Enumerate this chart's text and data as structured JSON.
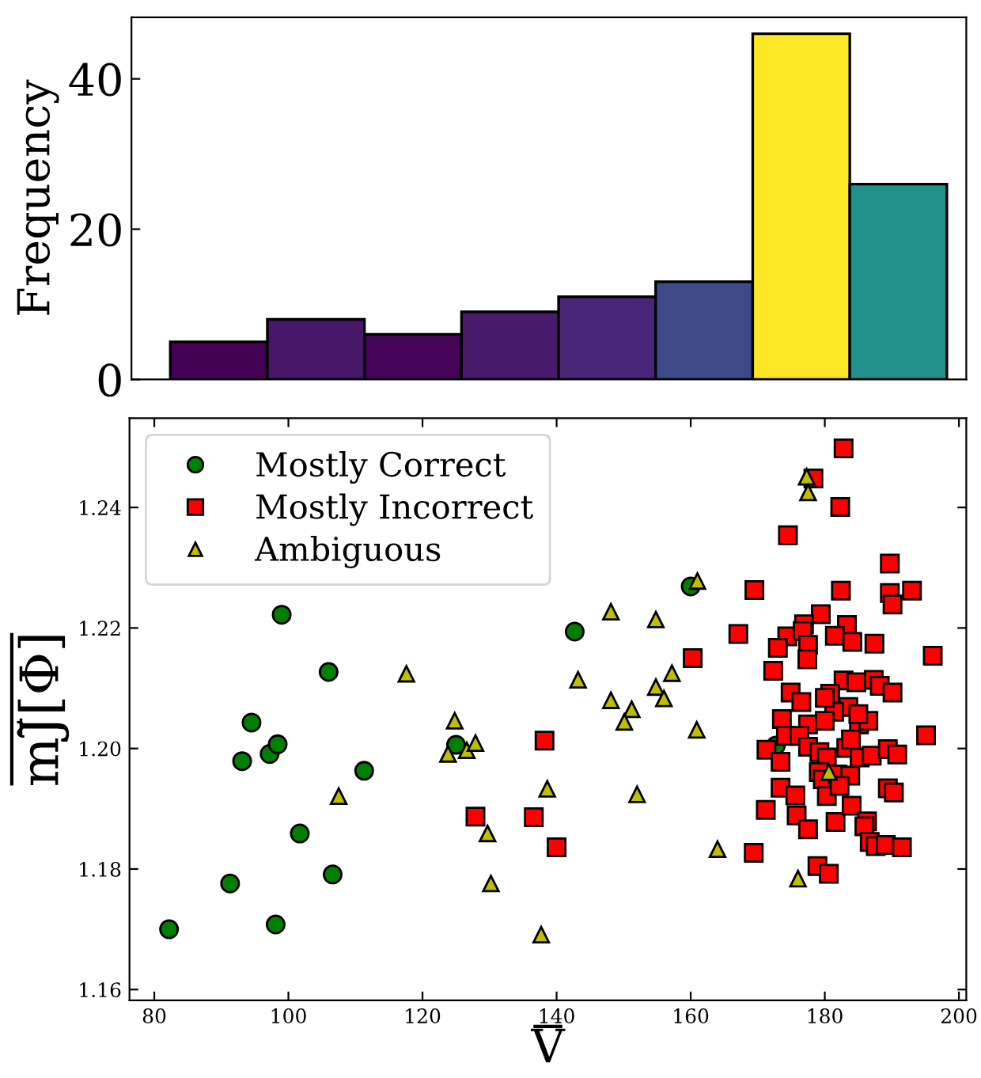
{
  "chart_data": [
    {
      "type": "bar",
      "ylabel": "Frequency",
      "categories": [
        null,
        null,
        null,
        null,
        null,
        null,
        null,
        null
      ],
      "values": [
        5,
        8,
        6,
        9,
        11,
        13,
        46,
        26
      ],
      "colors": [
        "#440154",
        "#481769",
        "#450457",
        "#481a6c",
        "#482677",
        "#3e4989",
        "#fde725",
        "#21918c"
      ],
      "ylim": [
        0,
        48.2
      ],
      "yticks": [
        0,
        20,
        40
      ],
      "grid": false
    },
    {
      "type": "scatter",
      "xlabel": "V",
      "ylabel": "mJ̃[Φ]",
      "legend": "top left",
      "grid": false,
      "xlim": [
        76.3,
        201.1
      ],
      "xticks": [
        80,
        100,
        120,
        140,
        160,
        180,
        200
      ],
      "ylim": [
        1.1582,
        1.2548
      ],
      "yticks": [
        1.16,
        1.18,
        {
          "value": 1.2,
          "label": "1.20"
        },
        1.22,
        1.24
      ],
      "series": [
        {
          "name": "Mostly Correct",
          "color": "#008000",
          "marker": "circle",
          "x": [
            82.2,
            94.5,
            93.1,
            97.2,
            98.4,
            91.3,
            98.1,
            101.7,
            106.6,
            111.3,
            125.0,
            99.0,
            106.0,
            142.7,
            160.0,
            172.7
          ],
          "values": [
            1.17,
            1.2043,
            1.1979,
            1.1991,
            1.2007,
            1.1776,
            1.1708,
            1.1859,
            1.1791,
            1.1963,
            1.2006,
            1.2222,
            1.2127,
            1.2194,
            1.2269,
            1.2005
          ]
        },
        {
          "name": "Mostly Incorrect",
          "color": "#ff0000",
          "marker": "square",
          "x": [
            127.9,
            136.6,
            138.2,
            140.0,
            182.8,
            178.3,
            182.3,
            174.5,
            189.7,
            169.5,
            182.4,
            189.7,
            193.0,
            190.1,
            179.4,
            176.9,
            183.3,
            167.1,
            174.4,
            176.7,
            181.5,
            184.1,
            187.4,
            196.1,
            173.0,
            177.5,
            160.3,
            172.3,
            177.4,
            174.9,
            176.5,
            182.8,
            184.7,
            187.3,
            188.2,
            190.1,
            180.8,
            183.5,
            181.4,
            180.0,
            173.6,
            177.5,
            180.0,
            185.1,
            186.5,
            185.0,
            195.1,
            174.2,
            176.2,
            171.3,
            173.4,
            177.5,
            179.2,
            180.3,
            183.2,
            183.9,
            185.2,
            187.0,
            189.4,
            190.8,
            179.1,
            179.7,
            181.9,
            183.8,
            173.4,
            175.6,
            180.3,
            182.2,
            189.4,
            190.3,
            171.2,
            175.8,
            177.5,
            181.6,
            184.0,
            186.3,
            185.9,
            186.7,
            187.6,
            189.1,
            191.5,
            169.4,
            178.9,
            180.6
          ],
          "values": [
            1.1887,
            1.1886,
            1.2013,
            1.1836,
            1.2498,
            1.2448,
            1.2401,
            1.2354,
            1.2307,
            1.2263,
            1.2262,
            1.2258,
            1.2262,
            1.2239,
            1.2223,
            1.2206,
            1.2205,
            1.219,
            1.2186,
            1.2195,
            1.2187,
            1.2177,
            1.2174,
            1.2154,
            1.2167,
            1.2172,
            1.215,
            1.2129,
            1.2148,
            1.2093,
            1.2077,
            1.2113,
            1.211,
            1.2114,
            1.2104,
            1.2093,
            1.2091,
            1.2069,
            1.2061,
            1.2084,
            1.2049,
            1.204,
            1.2046,
            1.204,
            1.2046,
            1.2057,
            1.2022,
            1.2021,
            1.2021,
            1.1998,
            1.1978,
            1.2003,
            1.1994,
            1.1985,
            1.2001,
            1.2015,
            1.1985,
            1.1988,
            1.1999,
            1.199,
            1.1961,
            1.1949,
            1.1957,
            1.1955,
            1.1935,
            1.1922,
            1.1921,
            1.1938,
            1.1934,
            1.1927,
            1.1898,
            1.1889,
            1.1866,
            1.1878,
            1.1905,
            1.1879,
            1.1871,
            1.1845,
            1.1838,
            1.184,
            1.1836,
            1.1827,
            1.1805,
            1.1792
          ]
        },
        {
          "name": "Ambiguous",
          "color": "#bfbf00",
          "marker": "triangle",
          "x": [
            124.8,
            123.8,
            126.6,
            127.9,
            107.5,
            129.7,
            130.2,
            138.6,
            137.7,
            117.6,
            161.0,
            148.1,
            154.8,
            143.2,
            157.2,
            154.8,
            156.0,
            148.1,
            151.2,
            177.3,
            177.5,
            150.1,
            160.9,
            152.0,
            164.0,
            176.0,
            180.6
          ],
          "values": [
            1.2046,
            1.1991,
            1.1997,
            1.2009,
            1.1921,
            1.1859,
            1.1776,
            1.1933,
            1.1691,
            1.2124,
            1.2278,
            1.2227,
            1.2214,
            1.2114,
            1.2125,
            1.2102,
            1.2083,
            1.208,
            1.2065,
            1.2451,
            1.2425,
            1.2044,
            1.2031,
            1.1924,
            1.1833,
            1.1784,
            1.1961
          ]
        }
      ]
    }
  ]
}
